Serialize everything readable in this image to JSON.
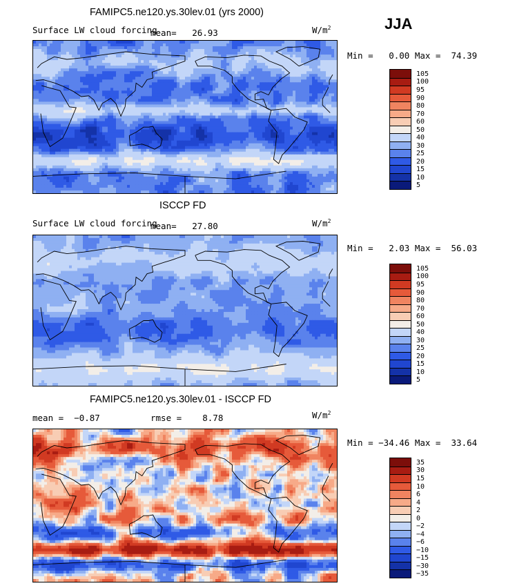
{
  "season": "JJA",
  "palette_seq": [
    "#0a1a7a",
    "#1432a8",
    "#2046d0",
    "#2f5ae6",
    "#5a82ec",
    "#8fb0f2",
    "#c3d6f8",
    "#f3eee8",
    "#f8cdb4",
    "#f7aa88",
    "#f08460",
    "#e65a3a",
    "#d13a22",
    "#a81c12",
    "#7c0e0a"
  ],
  "palette_div": [
    "#0a1a7a",
    "#1432a8",
    "#2046d0",
    "#2f5ae6",
    "#5a82ec",
    "#8fb0f2",
    "#c3d6f8",
    "#f3eee8",
    "#f8cdb4",
    "#f7aa88",
    "#f08460",
    "#e65a3a",
    "#d13a22",
    "#a81c12",
    "#7c0e0a"
  ],
  "panels": [
    {
      "title": "FAMIPC5.ne120.ys.30lev.01 (yrs 2000)",
      "subtitle_left": "Surface LW cloud forcing",
      "mean_text": "mean=   26.93",
      "units_text": "W/m",
      "units_sup": "2",
      "minmax_text": "Min =   0.00 Max =  74.39",
      "colorbar_labels": [
        "105",
        "100",
        "95",
        "90",
        "80",
        "70",
        "60",
        "50",
        "40",
        "30",
        "25",
        "20",
        "15",
        "10",
        "5"
      ],
      "field_style": "model"
    },
    {
      "title": "ISCCP FD",
      "subtitle_left": "Surface LW cloud forcing",
      "mean_text": "mean=   27.80",
      "units_text": "W/m",
      "units_sup": "2",
      "minmax_text": "Min =   2.03 Max =  56.03",
      "colorbar_labels": [
        "105",
        "100",
        "95",
        "90",
        "80",
        "70",
        "60",
        "50",
        "40",
        "30",
        "25",
        "20",
        "15",
        "10",
        "5"
      ],
      "field_style": "obs"
    },
    {
      "title": "FAMIPC5.ne120.ys.30lev.01 - ISCCP FD",
      "subtitle_left": "mean =  −0.87",
      "rmse_text": "rmse =    8.78",
      "units_text": "W/m",
      "units_sup": "2",
      "minmax_text": "Min = −34.46 Max =  33.64",
      "colorbar_labels": [
        "35",
        "30",
        "15",
        "10",
        "6",
        "4",
        "2",
        "0",
        "−2",
        "−4",
        "−6",
        "−10",
        "−15",
        "−30",
        "−35"
      ],
      "field_style": "diff"
    }
  ]
}
